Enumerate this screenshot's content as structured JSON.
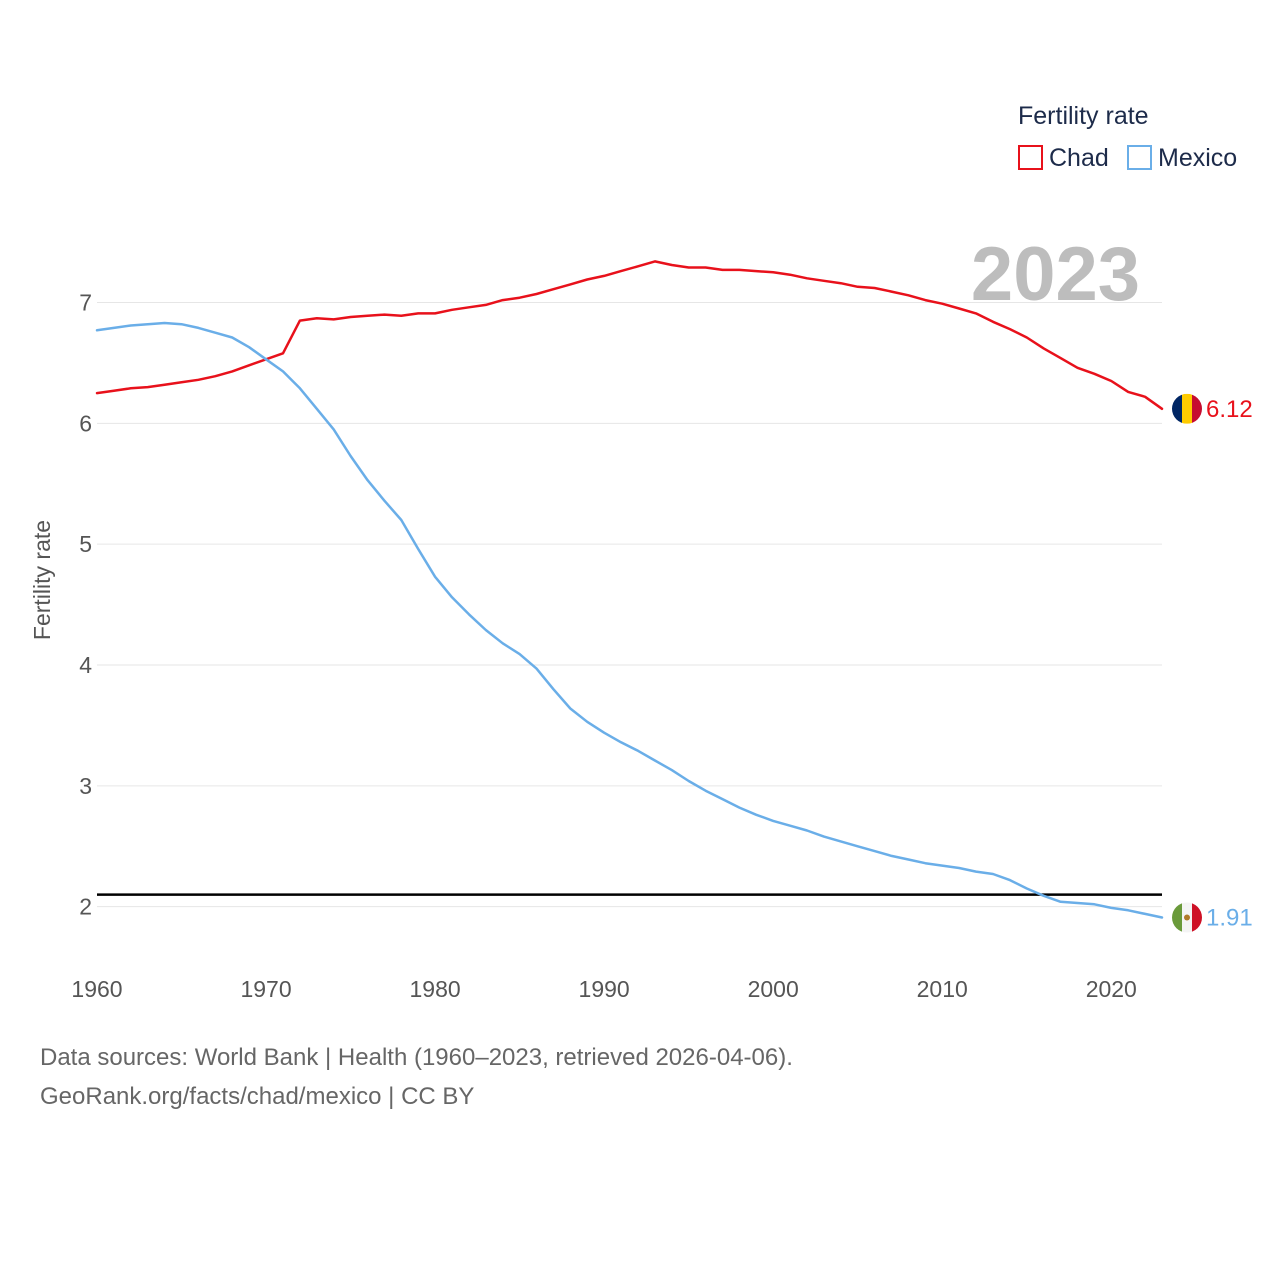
{
  "legend": {
    "title": "Fertility rate"
  },
  "year_label": "2023",
  "reference_line": {
    "y": 2.1
  },
  "colors": {
    "Chad": "#e8111b",
    "Mexico": "#6aaee8",
    "grid": "#e6e6e6",
    "reference": "#000000"
  },
  "chart_data": {
    "type": "line",
    "title": "",
    "xlabel": "",
    "ylabel": "Fertility rate",
    "xlim": [
      1960,
      2023
    ],
    "ylim": [
      1.6,
      7.6
    ],
    "xticks": [
      1960,
      1970,
      1980,
      1990,
      2000,
      2010,
      2020
    ],
    "yticks": [
      2,
      3,
      4,
      5,
      6,
      7
    ],
    "x": [
      1960,
      1961,
      1962,
      1963,
      1964,
      1965,
      1966,
      1967,
      1968,
      1969,
      1970,
      1971,
      1972,
      1973,
      1974,
      1975,
      1976,
      1977,
      1978,
      1979,
      1980,
      1981,
      1982,
      1983,
      1984,
      1985,
      1986,
      1987,
      1988,
      1989,
      1990,
      1991,
      1992,
      1993,
      1994,
      1995,
      1996,
      1997,
      1998,
      1999,
      2000,
      2001,
      2002,
      2003,
      2004,
      2005,
      2006,
      2007,
      2008,
      2009,
      2010,
      2011,
      2012,
      2013,
      2014,
      2015,
      2016,
      2017,
      2018,
      2019,
      2020,
      2021,
      2022,
      2023
    ],
    "series": [
      {
        "name": "Chad",
        "end_label": "6.12",
        "values": [
          6.25,
          6.27,
          6.29,
          6.3,
          6.32,
          6.34,
          6.36,
          6.39,
          6.43,
          6.48,
          6.53,
          6.58,
          6.85,
          6.87,
          6.86,
          6.88,
          6.89,
          6.9,
          6.89,
          6.91,
          6.91,
          6.94,
          6.96,
          6.98,
          7.02,
          7.04,
          7.07,
          7.11,
          7.15,
          7.19,
          7.22,
          7.26,
          7.3,
          7.34,
          7.31,
          7.29,
          7.29,
          7.27,
          7.27,
          7.26,
          7.25,
          7.23,
          7.2,
          7.18,
          7.16,
          7.13,
          7.12,
          7.09,
          7.06,
          7.02,
          6.99,
          6.95,
          6.91,
          6.84,
          6.78,
          6.71,
          6.62,
          6.54,
          6.46,
          6.41,
          6.35,
          6.26,
          6.22,
          6.12
        ]
      },
      {
        "name": "Mexico",
        "end_label": "1.91",
        "values": [
          6.77,
          6.79,
          6.81,
          6.82,
          6.83,
          6.82,
          6.79,
          6.75,
          6.71,
          6.63,
          6.53,
          6.43,
          6.29,
          6.12,
          5.95,
          5.73,
          5.53,
          5.36,
          5.2,
          4.96,
          4.73,
          4.56,
          4.42,
          4.29,
          4.18,
          4.09,
          3.97,
          3.8,
          3.64,
          3.53,
          3.44,
          3.36,
          3.29,
          3.21,
          3.13,
          3.04,
          2.96,
          2.89,
          2.82,
          2.76,
          2.71,
          2.67,
          2.63,
          2.58,
          2.54,
          2.5,
          2.46,
          2.42,
          2.39,
          2.36,
          2.34,
          2.32,
          2.29,
          2.27,
          2.22,
          2.15,
          2.09,
          2.04,
          2.03,
          2.02,
          1.99,
          1.97,
          1.94,
          1.91
        ]
      }
    ]
  },
  "footer": {
    "sources": "Data sources: World Bank | Health (1960–2023, retrieved 2026-04-06).",
    "credit": "GeoRank.org/facts/chad/mexico | CC BY"
  }
}
